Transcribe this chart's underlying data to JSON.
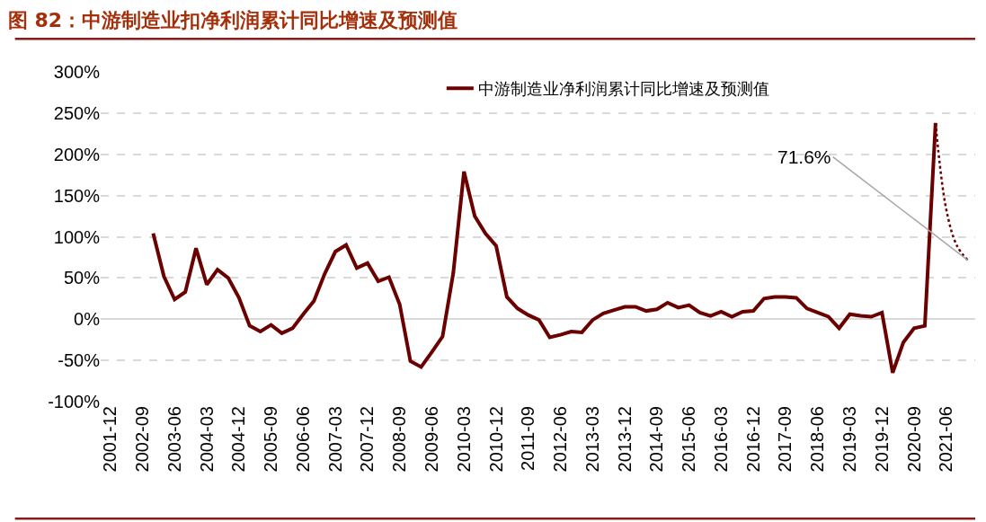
{
  "chart_data": {
    "type": "line",
    "title": "图 82：中游制造业扣净利润累计同比增速及预测值",
    "categories": [
      "2001-12",
      null,
      null,
      "2002-09",
      null,
      null,
      "2003-06",
      null,
      null,
      "2004-03",
      null,
      null,
      "2004-12",
      null,
      null,
      "2005-09",
      null,
      null,
      "2006-06",
      null,
      null,
      "2007-03",
      null,
      null,
      "2007-12",
      null,
      null,
      "2008-09",
      null,
      null,
      "2009-06",
      null,
      null,
      "2010-03",
      null,
      null,
      "2010-12",
      null,
      null,
      "2011-09",
      null,
      null,
      "2012-06",
      null,
      null,
      "2013-03",
      null,
      null,
      "2013-12",
      null,
      null,
      "2014-09",
      null,
      null,
      "2015-06",
      null,
      null,
      "2016-03",
      null,
      null,
      "2016-12",
      null,
      null,
      "2017-09",
      null,
      null,
      "2018-06",
      null,
      null,
      "2019-03",
      null,
      null,
      "2019-12",
      null,
      null,
      "2020-09",
      null,
      null,
      "2021-06",
      null,
      null
    ],
    "series": [
      {
        "name": "中游制造业净利润累计同比增速及预测值",
        "color": "#6b0000",
        "line_style": "solid",
        "values": [
          null,
          null,
          null,
          null,
          104,
          52,
          24,
          33,
          86,
          42,
          60,
          50,
          26,
          -8,
          -15,
          -7,
          -17,
          -11,
          6,
          22,
          55,
          82,
          90,
          62,
          68,
          46,
          51,
          18,
          -51,
          -58,
          -40,
          -21,
          56,
          179,
          125,
          104,
          89,
          27,
          13,
          5,
          -1,
          -22,
          -19,
          -15,
          -16,
          -1,
          7,
          11,
          15,
          15,
          10,
          12,
          20,
          14,
          17,
          8,
          4,
          9,
          3,
          9,
          10,
          25,
          27,
          27,
          26,
          13,
          8,
          3,
          -11,
          6,
          4,
          3,
          8,
          -65,
          -28,
          -11,
          -8,
          238,
          null,
          null,
          null
        ]
      },
      {
        "color": "#6b0000",
        "line_style": "dotted",
        "values": [
          null,
          null,
          null,
          null,
          null,
          null,
          null,
          null,
          null,
          null,
          null,
          null,
          null,
          null,
          null,
          null,
          null,
          null,
          null,
          null,
          null,
          null,
          null,
          null,
          null,
          null,
          null,
          null,
          null,
          null,
          null,
          null,
          null,
          null,
          null,
          null,
          null,
          null,
          null,
          null,
          null,
          null,
          null,
          null,
          null,
          null,
          null,
          null,
          null,
          null,
          null,
          null,
          null,
          null,
          null,
          null,
          null,
          null,
          null,
          null,
          null,
          null,
          null,
          null,
          null,
          null,
          null,
          null,
          null,
          null,
          null,
          null,
          null,
          null,
          null,
          null,
          null,
          238,
          133,
          89,
          71.6
        ],
        "value_labels": [
          null,
          null,
          null,
          null,
          null,
          null,
          null,
          null,
          null,
          null,
          null,
          null,
          null,
          null,
          null,
          null,
          null,
          null,
          null,
          null,
          null,
          null,
          null,
          null,
          null,
          null,
          null,
          null,
          null,
          null,
          null,
          null,
          null,
          null,
          null,
          null,
          null,
          null,
          null,
          null,
          null,
          null,
          null,
          null,
          null,
          null,
          null,
          null,
          null,
          null,
          null,
          null,
          null,
          null,
          null,
          null,
          null,
          null,
          null,
          null,
          null,
          null,
          null,
          null,
          null,
          null,
          null,
          null,
          null,
          null,
          null,
          null,
          null,
          null,
          null,
          null,
          null,
          null,
          null,
          null,
          "71.6%"
        ]
      }
    ],
    "ylim": [
      -100,
      300
    ],
    "yticks": [
      {
        "value": -100,
        "label": "-100%"
      },
      {
        "value": -50,
        "label": "-50%"
      },
      {
        "value": 0,
        "label": "0%"
      },
      {
        "value": 50,
        "label": "50%"
      },
      {
        "value": 100,
        "label": "100%"
      },
      {
        "value": 150,
        "label": "150%"
      },
      {
        "value": 200,
        "label": "200%"
      },
      {
        "value": 250,
        "label": "250%"
      },
      {
        "value": 300,
        "label": "300%"
      }
    ],
    "grid": "y",
    "legend": "top",
    "marker": "none"
  }
}
